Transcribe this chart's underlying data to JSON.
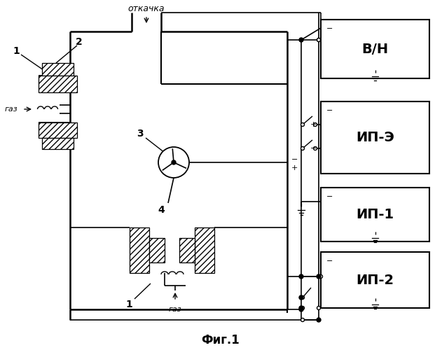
{
  "title": "Фиг.1",
  "otkatka_label": "откачка",
  "gaz_label": "газ",
  "gaz_label2": "газ",
  "label1": "1",
  "label2": "2",
  "label3": "3",
  "label4": "4",
  "box_VN": "В/Н",
  "box_IPE": "ИП-Э",
  "box_IP1": "ИП-1",
  "box_IP2": "ИП-2",
  "plus": "+",
  "minus": "−",
  "bg_color": "#ffffff"
}
